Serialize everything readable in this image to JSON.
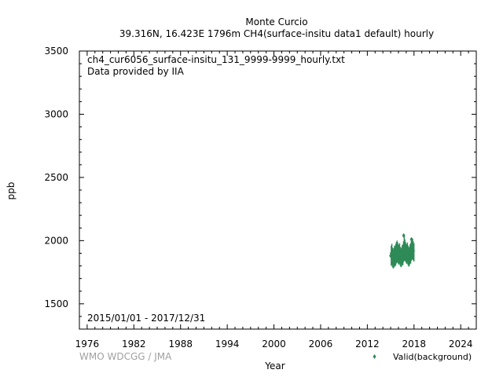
{
  "title": {
    "line1": "Monte Curcio",
    "line2": "39.316N, 16.423E 1796m    CH4(surface-insitu data1 default) hourly"
  },
  "annotations": {
    "filename": "ch4_cur6056_surface-insitu_131_9999-9999_hourly.txt",
    "provider": "Data provided by IIA",
    "date_range": "2015/01/01 - 2017/12/31"
  },
  "credit": "WMO WDCGG / JMA",
  "colors": {
    "series": "#2e8b57",
    "credit": "#a0a0a0",
    "axis": "#000000"
  },
  "chart_data": {
    "type": "scatter",
    "title": "Monte Curcio",
    "xlabel": "Year",
    "ylabel": "ppb",
    "xlim": [
      1975,
      2026
    ],
    "ylim": [
      1300,
      3500
    ],
    "xticks": [
      1976,
      1982,
      1988,
      1994,
      2000,
      2006,
      2012,
      2018,
      2024
    ],
    "yticks": [
      1500,
      2000,
      2500,
      3000,
      3500
    ],
    "grid": false,
    "legend_position": "bottom-right",
    "series": [
      {
        "name": "Valid(background)",
        "marker": "diamond",
        "x": [
          2015.0,
          2015.08,
          2015.17,
          2015.25,
          2015.33,
          2015.42,
          2015.5,
          2015.58,
          2015.67,
          2015.75,
          2015.83,
          2015.92,
          2016.0,
          2016.08,
          2016.17,
          2016.25,
          2016.33,
          2016.42,
          2016.5,
          2016.58,
          2016.67,
          2016.75,
          2016.83,
          2016.92,
          2017.0,
          2017.08,
          2017.17,
          2017.25,
          2017.33,
          2017.42,
          2017.5,
          2017.58,
          2017.67,
          2017.75,
          2017.83,
          2017.92
        ],
        "y": [
          1880,
          1900,
          1870,
          1850,
          1860,
          1880,
          1870,
          1890,
          1910,
          1930,
          1920,
          1900,
          1890,
          1910,
          1880,
          1860,
          1870,
          1900,
          1890,
          1920,
          2040,
          1950,
          1930,
          1910,
          1900,
          1920,
          1890,
          1870,
          1880,
          1900,
          1910,
          1930,
          2010,
          1960,
          1940,
          1920
        ],
        "ymin": [
          1800,
          1810,
          1790,
          1780,
          1785,
          1800,
          1795,
          1805,
          1820,
          1830,
          1825,
          1815,
          1810,
          1820,
          1800,
          1790,
          1795,
          1810,
          1805,
          1830,
          1840,
          1840,
          1835,
          1825,
          1815,
          1825,
          1805,
          1795,
          1800,
          1815,
          1820,
          1840,
          1850,
          1850,
          1845,
          1835
        ],
        "ymax": [
          1960,
          1975,
          1945,
          1930,
          1940,
          1960,
          1955,
          1975,
          1990,
          2000,
          1985,
          1970,
          1965,
          1980,
          1950,
          1935,
          1945,
          1965,
          1970,
          1995,
          2050,
          2010,
          1990,
          1975,
          1970,
          1985,
          1960,
          1940,
          1950,
          1970,
          1980,
          2000,
          2020,
          2015,
          1995,
          1980
        ]
      }
    ]
  }
}
